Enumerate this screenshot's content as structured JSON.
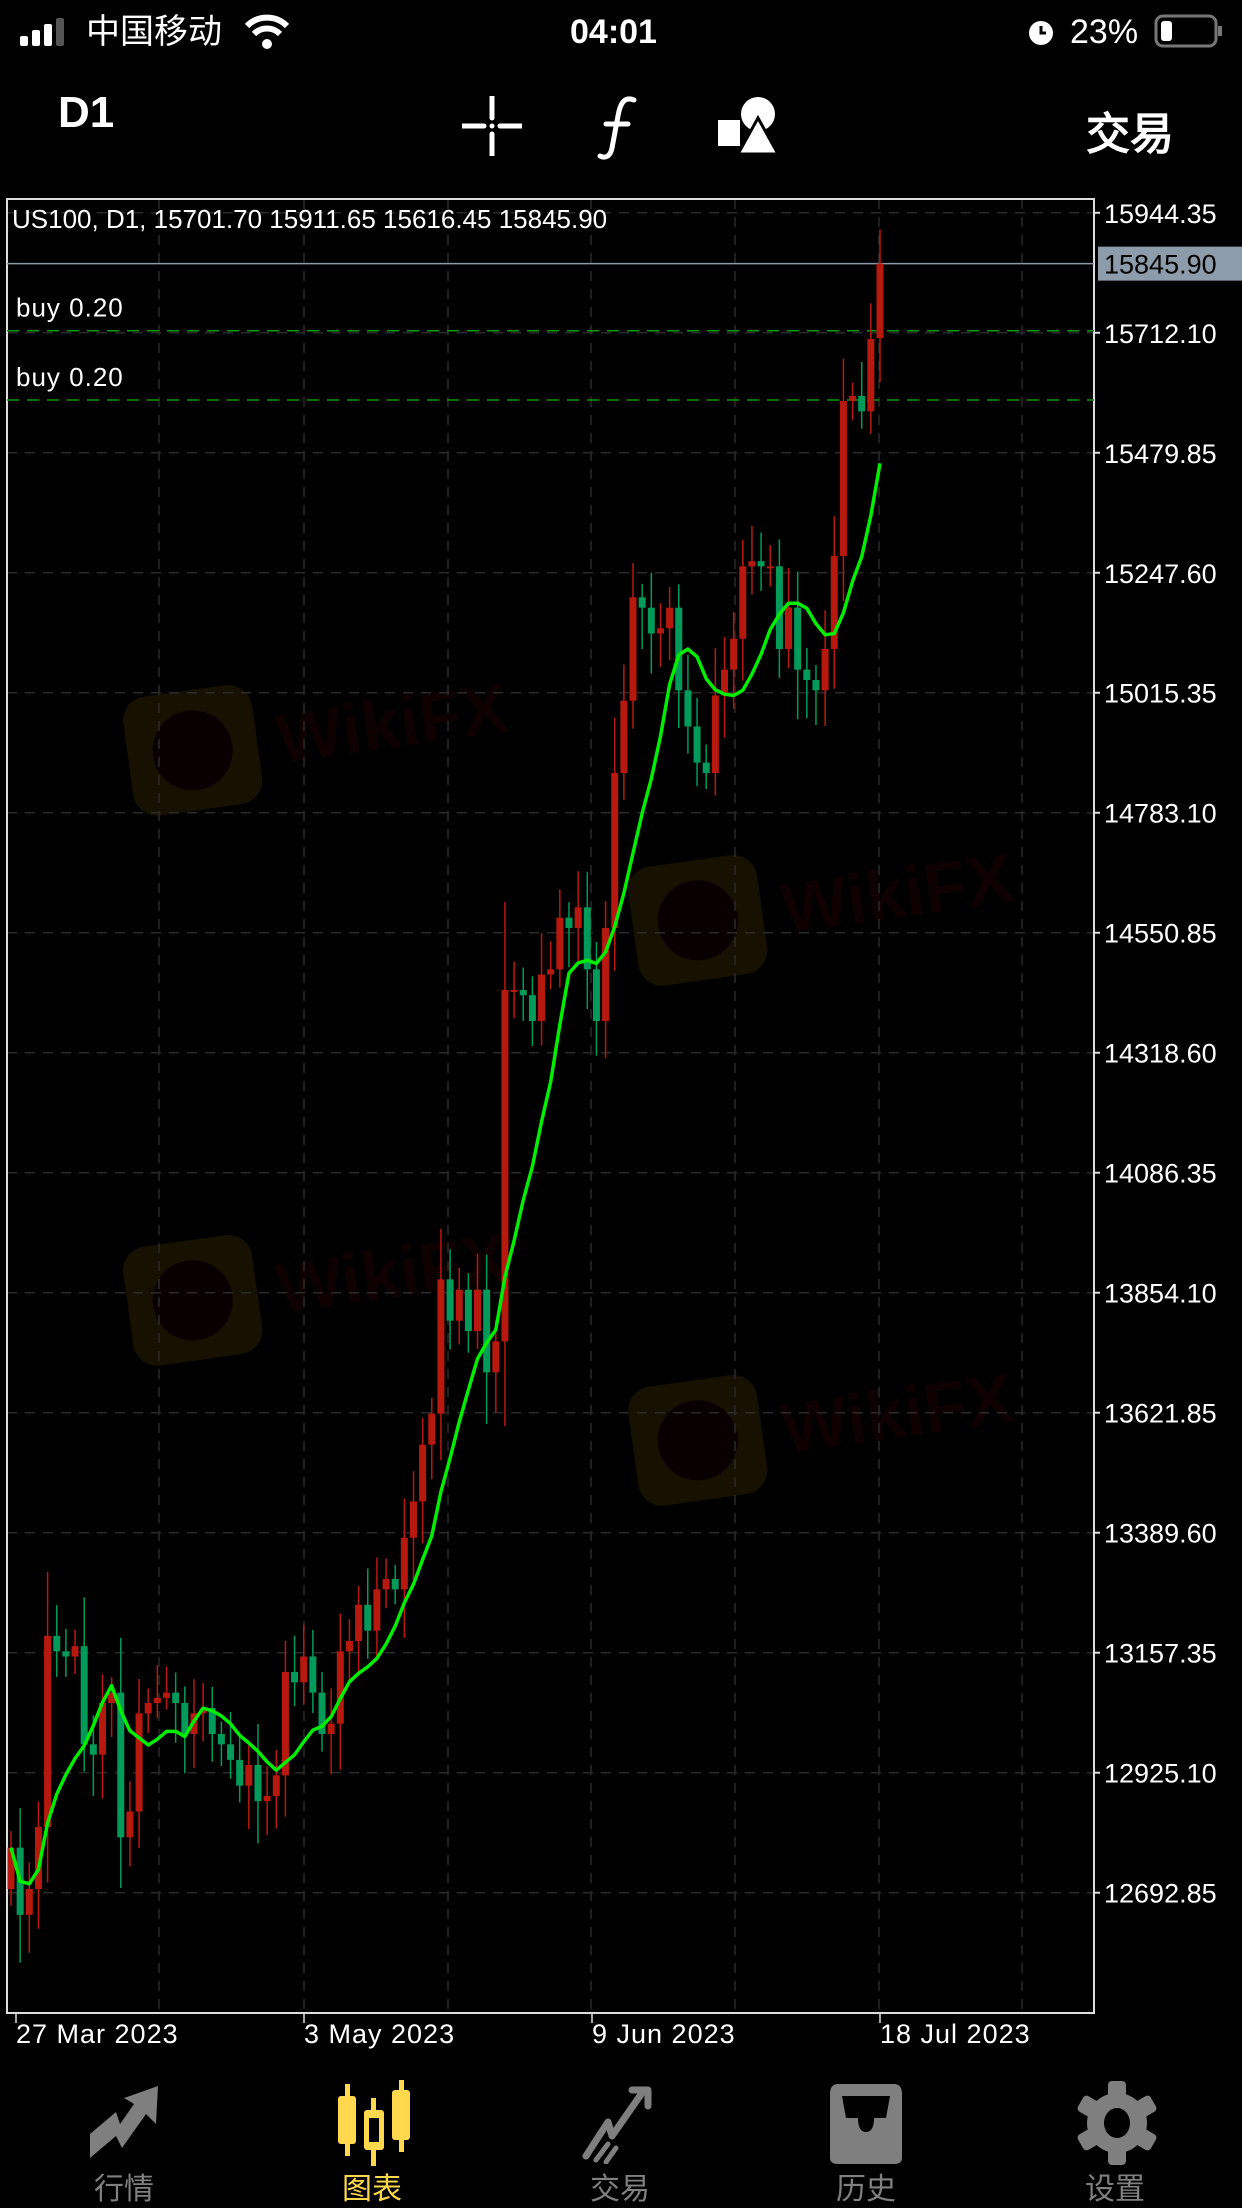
{
  "status_bar": {
    "carrier": "中国移动",
    "time": "04:01",
    "battery": "23%",
    "icons": [
      "signal-icon",
      "wifi-icon",
      "alarm-icon",
      "battery-icon"
    ]
  },
  "header": {
    "timeframe": "D1",
    "trade_label": "交易",
    "icons": [
      "crosshair-icon",
      "function-icon",
      "objects-icon"
    ]
  },
  "chart_data": {
    "type": "candlestick",
    "info_line": "US100, D1, 15701.70 15911.65 15616.45 15845.90",
    "symbol": "US100",
    "last_candle": {
      "open": 15701.7,
      "high": 15911.65,
      "low": 15616.45,
      "close": 15845.9
    },
    "current_price_label": "15845.90",
    "y_ticks": [
      "15944.35",
      "15712.10",
      "15479.85",
      "15247.60",
      "15015.35",
      "14783.10",
      "14550.85",
      "14318.60",
      "14086.35",
      "13854.10",
      "13621.85",
      "13389.60",
      "13157.35",
      "12925.10",
      "12692.85"
    ],
    "ylim": [
      12460,
      15971
    ],
    "x_ticks": [
      "27 Mar 2023",
      "3 May 2023",
      "9 Jun 2023",
      "18 Jul 2023"
    ],
    "closes": [
      12780,
      12650,
      12700,
      12820,
      13190,
      13160,
      13150,
      13170,
      12980,
      12960,
      13060,
      13080,
      12800,
      12850,
      13040,
      13060,
      13070,
      13080,
      13060,
      13000,
      13040,
      13050,
      13000,
      12980,
      12950,
      12900,
      12940,
      12870,
      12880,
      12920,
      13120,
      13100,
      13150,
      13080,
      13000,
      13020,
      13160,
      13180,
      13250,
      13200,
      13280,
      13300,
      13280,
      13380,
      13450,
      13560,
      13620,
      13880,
      13800,
      13860,
      13780,
      13860,
      13700,
      13760,
      14440,
      14440,
      14430,
      14380,
      14470,
      14480,
      14580,
      14560,
      14600,
      14480,
      14380,
      14560,
      14860,
      15000,
      15200,
      15180,
      15130,
      15140,
      15180,
      15020,
      14950,
      14880,
      14860,
      15010,
      15060,
      15120,
      15260,
      15270,
      15260,
      15260,
      15100,
      15180,
      15060,
      15040,
      15020,
      15100,
      15280,
      15580,
      15590,
      15560,
      15700,
      15845.9
    ],
    "first_open": 12700,
    "orders": [
      {
        "label": "buy 0.20",
        "price": 15716
      },
      {
        "label": "buy 0.20",
        "price": 15582
      }
    ],
    "colors": {
      "up": "#b8190e",
      "down": "#009b5a",
      "ma": "#00ee00",
      "order_line": "#0a9a0a",
      "price_line": "#8a9aab",
      "grid": "#2a2a2a"
    },
    "grid": true,
    "watermark": "WikiFX"
  },
  "bottom_nav": [
    {
      "label": "行情",
      "icon": "quotes-icon"
    },
    {
      "label": "图表",
      "icon": "chart-icon",
      "active": true
    },
    {
      "label": "交易",
      "icon": "trade-icon"
    },
    {
      "label": "历史",
      "icon": "history-icon"
    },
    {
      "label": "设置",
      "icon": "settings-icon"
    }
  ]
}
